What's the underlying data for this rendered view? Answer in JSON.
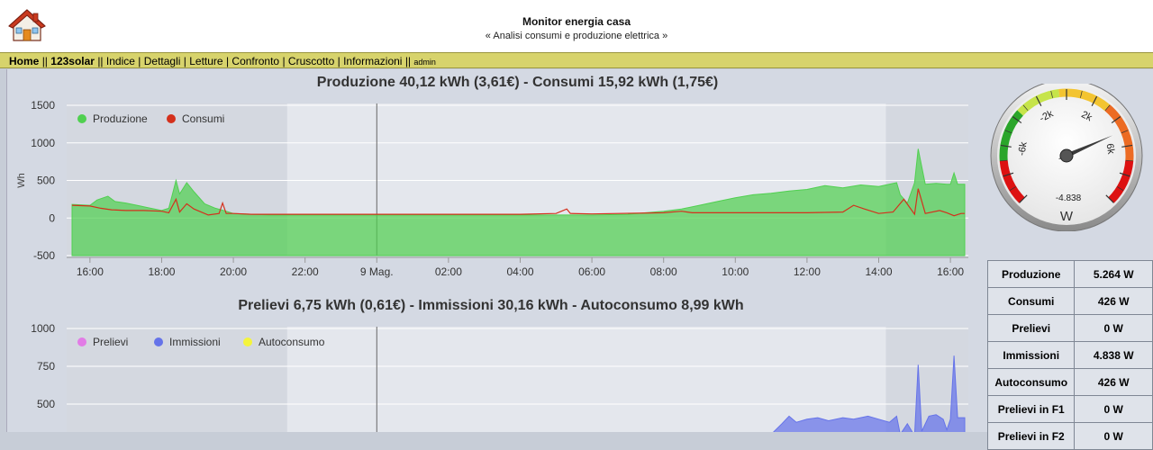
{
  "header": {
    "title": "Monitor energia casa",
    "subtitle": "« Analisi consumi e produzione elettrica »"
  },
  "nav": {
    "items": [
      "Home",
      "123solar",
      "Indice",
      "Dettagli",
      "Letture",
      "Confronto",
      "Cruscotto",
      "Informazioni"
    ],
    "admin_label": "admin",
    "separator": "||"
  },
  "charts": [
    {
      "title": "Produzione 40,12 kWh (3,61€) - Consumi 15,92 kWh (1,75€)"
    },
    {
      "title": "Prelievi 6,75 kWh (0,61€) - Immissioni 30,16 kWh - Autoconsumo 8,99 kWh"
    }
  ],
  "chart_data": [
    {
      "type": "area",
      "ylabel": "Wh",
      "ylim": [
        -500,
        1500
      ],
      "yticks": [
        "1500",
        "1000",
        "500",
        "0",
        "-500"
      ],
      "xticks": [
        "16:00",
        "18:00",
        "20:00",
        "22:00",
        "9 Mag.",
        "02:00",
        "04:00",
        "06:00",
        "08:00",
        "10:00",
        "12:00",
        "14:00",
        "16:00"
      ],
      "legend": "top-left",
      "series": [
        {
          "name": "Produzione",
          "color": "#50d050",
          "points": [
            [
              15.5,
              180
            ],
            [
              16.0,
              170
            ],
            [
              16.2,
              240
            ],
            [
              16.5,
              290
            ],
            [
              16.7,
              220
            ],
            [
              17.0,
              200
            ],
            [
              17.4,
              160
            ],
            [
              17.6,
              140
            ],
            [
              18.0,
              100
            ],
            [
              18.2,
              130
            ],
            [
              18.4,
              500
            ],
            [
              18.5,
              320
            ],
            [
              18.7,
              470
            ],
            [
              18.9,
              350
            ],
            [
              19.2,
              190
            ],
            [
              19.5,
              130
            ],
            [
              19.8,
              90
            ],
            [
              20.0,
              60
            ],
            [
              21.0,
              40
            ],
            [
              22.0,
              40
            ],
            [
              23.0,
              40
            ],
            [
              24.0,
              40
            ],
            [
              26.0,
              40
            ],
            [
              28.0,
              40
            ],
            [
              30.0,
              40
            ],
            [
              30.5,
              45
            ],
            [
              31.0,
              50
            ],
            [
              31.5,
              70
            ],
            [
              32.0,
              90
            ],
            [
              32.5,
              120
            ],
            [
              33.0,
              170
            ],
            [
              33.5,
              220
            ],
            [
              34.0,
              270
            ],
            [
              34.5,
              310
            ],
            [
              35.0,
              330
            ],
            [
              35.5,
              360
            ],
            [
              36.0,
              380
            ],
            [
              36.5,
              430
            ],
            [
              37.0,
              400
            ],
            [
              37.5,
              440
            ],
            [
              38.0,
              420
            ],
            [
              38.5,
              470
            ],
            [
              38.6,
              310
            ],
            [
              38.8,
              200
            ],
            [
              39.0,
              470
            ],
            [
              39.1,
              920
            ],
            [
              39.3,
              450
            ],
            [
              39.6,
              460
            ],
            [
              39.9,
              450
            ],
            [
              40.0,
              450
            ],
            [
              40.1,
              600
            ],
            [
              40.2,
              450
            ],
            [
              40.4,
              450
            ]
          ]
        },
        {
          "name": "Consumi",
          "color": "#d4301c",
          "points": [
            [
              15.5,
              170
            ],
            [
              16.0,
              160
            ],
            [
              16.3,
              130
            ],
            [
              16.6,
              110
            ],
            [
              17.0,
              100
            ],
            [
              17.5,
              100
            ],
            [
              18.0,
              90
            ],
            [
              18.2,
              70
            ],
            [
              18.4,
              250
            ],
            [
              18.5,
              80
            ],
            [
              18.7,
              190
            ],
            [
              18.9,
              120
            ],
            [
              19.3,
              40
            ],
            [
              19.6,
              60
            ],
            [
              19.7,
              200
            ],
            [
              19.8,
              60
            ],
            [
              20.0,
              60
            ],
            [
              20.5,
              50
            ],
            [
              22.0,
              50
            ],
            [
              24.0,
              50
            ],
            [
              26.0,
              50
            ],
            [
              28.0,
              50
            ],
            [
              29.0,
              60
            ],
            [
              29.3,
              120
            ],
            [
              29.4,
              60
            ],
            [
              30.0,
              55
            ],
            [
              32.0,
              70
            ],
            [
              32.5,
              90
            ],
            [
              32.8,
              70
            ],
            [
              34.0,
              70
            ],
            [
              36.0,
              70
            ],
            [
              37.0,
              80
            ],
            [
              37.3,
              170
            ],
            [
              37.6,
              120
            ],
            [
              38.0,
              60
            ],
            [
              38.4,
              80
            ],
            [
              38.7,
              250
            ],
            [
              39.0,
              50
            ],
            [
              39.1,
              390
            ],
            [
              39.3,
              60
            ],
            [
              39.7,
              100
            ],
            [
              39.9,
              70
            ],
            [
              40.1,
              30
            ],
            [
              40.3,
              60
            ],
            [
              40.4,
              60
            ]
          ]
        }
      ]
    },
    {
      "type": "area",
      "ylim": [
        250,
        1000
      ],
      "yticks": [
        "1000",
        "750",
        "500"
      ],
      "legend": "top-left",
      "series": [
        {
          "name": "Prelievi",
          "color": "#e27ce6",
          "points": []
        },
        {
          "name": "Immissioni",
          "color": "#6573e9",
          "points": [
            [
              35.0,
              300
            ],
            [
              35.3,
              370
            ],
            [
              35.5,
              420
            ],
            [
              35.7,
              380
            ],
            [
              36.0,
              400
            ],
            [
              36.3,
              410
            ],
            [
              36.6,
              390
            ],
            [
              37.0,
              410
            ],
            [
              37.3,
              400
            ],
            [
              37.7,
              420
            ],
            [
              38.0,
              400
            ],
            [
              38.3,
              380
            ],
            [
              38.5,
              420
            ],
            [
              38.6,
              300
            ],
            [
              38.8,
              370
            ],
            [
              39.0,
              290
            ],
            [
              39.1,
              760
            ],
            [
              39.2,
              320
            ],
            [
              39.4,
              420
            ],
            [
              39.6,
              430
            ],
            [
              39.8,
              400
            ],
            [
              39.9,
              330
            ],
            [
              40.0,
              400
            ],
            [
              40.1,
              820
            ],
            [
              40.2,
              410
            ],
            [
              40.4,
              410
            ]
          ]
        },
        {
          "name": "Autoconsumo",
          "color": "#f4f43c",
          "points": []
        }
      ]
    }
  ],
  "gauge": {
    "unit": "W",
    "value_text": "-4.838",
    "value": -4838,
    "min": -10000,
    "max": 10000,
    "tick_labels": [
      "-6k",
      "-2k",
      "2k",
      "6k"
    ]
  },
  "stats": [
    {
      "label": "Produzione",
      "value": "5.264 W"
    },
    {
      "label": "Consumi",
      "value": "426 W"
    },
    {
      "label": "Prelievi",
      "value": "0 W"
    },
    {
      "label": "Immissioni",
      "value": "4.838 W"
    },
    {
      "label": "Autoconsumo",
      "value": "426 W"
    },
    {
      "label": "Prelievi in F1",
      "value": "0 W"
    },
    {
      "label": "Prelievi in F2",
      "value": "0 W"
    }
  ]
}
